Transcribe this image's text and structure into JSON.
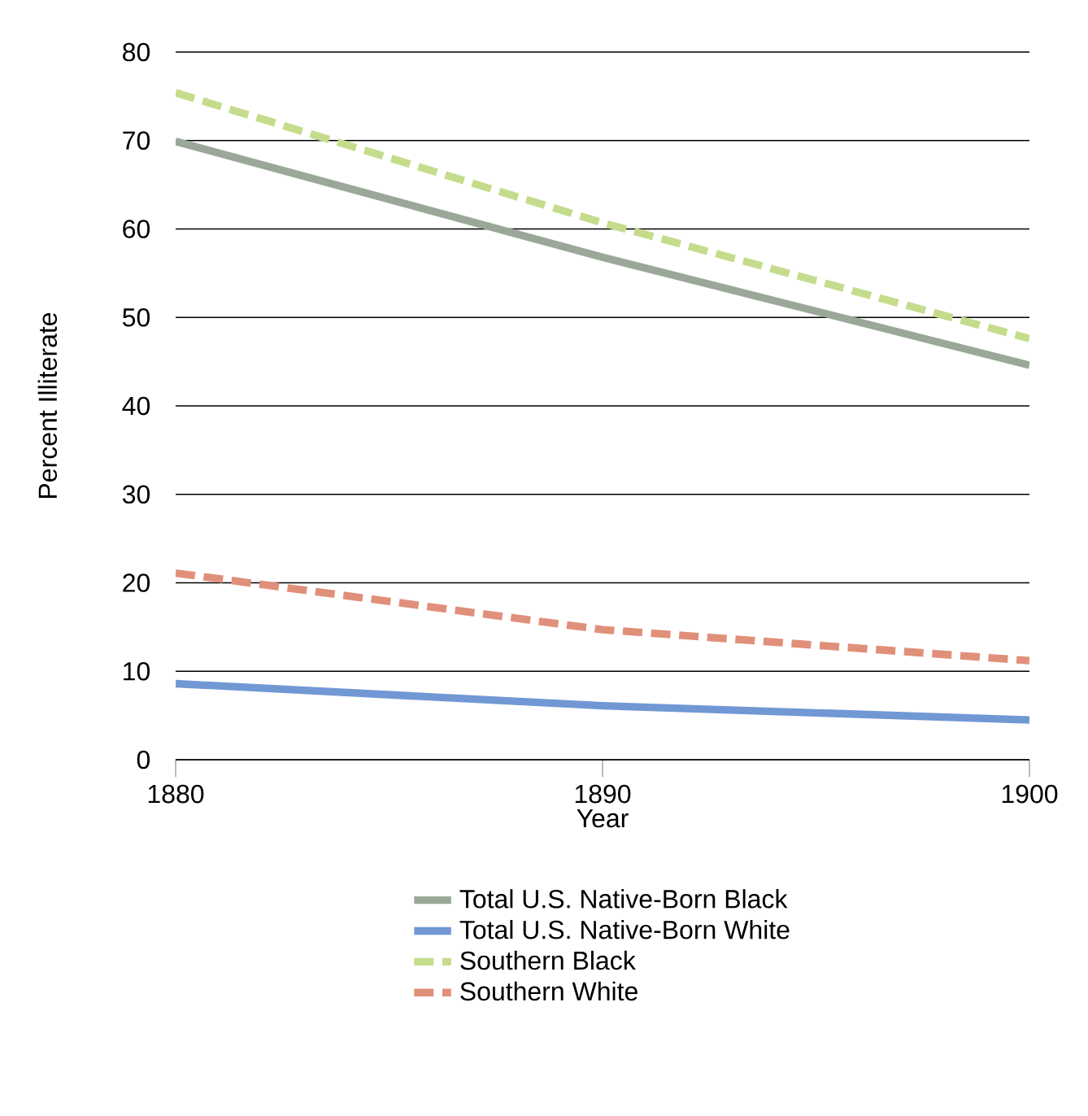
{
  "chart_data": {
    "type": "line",
    "xlabel": "Year",
    "ylabel": "Percent Illiterate",
    "x": [
      1880,
      1890,
      1900
    ],
    "xlim": [
      1880,
      1900
    ],
    "xticks": [
      1880,
      1890,
      1900
    ],
    "ylim": [
      0,
      80
    ],
    "yticks": [
      0,
      10,
      20,
      30,
      40,
      50,
      60,
      70,
      80
    ],
    "grid": "y",
    "legend": "bottom",
    "marker": "none",
    "series": [
      {
        "name": "Total U.S. Native-Born Black",
        "color": "#9aa898",
        "line_style": "solid",
        "values": [
          69.9,
          56.8,
          44.6
        ]
      },
      {
        "name": "Total U.S. Native-Born White",
        "color": "#7198d4",
        "line_style": "solid",
        "values": [
          8.6,
          6.1,
          4.5
        ]
      },
      {
        "name": "Southern Black",
        "color": "#c5dc8c",
        "line_style": "dashed",
        "values": [
          75.4,
          60.7,
          47.6
        ]
      },
      {
        "name": "Southern White",
        "color": "#e0907a",
        "line_style": "dashed",
        "values": [
          21.1,
          14.7,
          11.2
        ]
      }
    ]
  }
}
